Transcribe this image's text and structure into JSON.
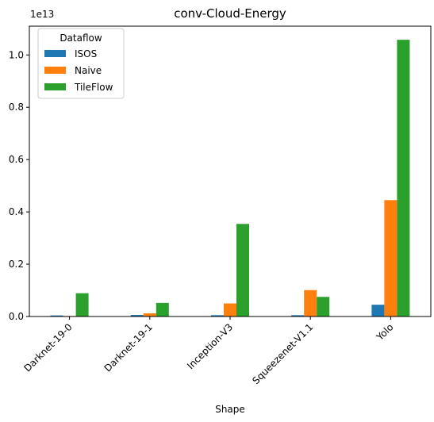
{
  "chart_data": {
    "type": "bar",
    "title": "conv-Cloud-Energy",
    "xlabel": "Shape",
    "ylabel": "",
    "y_scale_label": "1e13",
    "ylim": [
      0,
      1.11
    ],
    "yticks": [
      "0.0",
      "0.2",
      "0.4",
      "0.6",
      "0.8",
      "1.0"
    ],
    "ytick_values": [
      0,
      0.2,
      0.4,
      0.6,
      0.8,
      1.0
    ],
    "categories": [
      "Darknet-19-0",
      "Darknet-19-1",
      "Inception-V3",
      "Squeezenet-V1.1",
      "Yolo"
    ],
    "legend": {
      "title": "Dataflow",
      "placement": "top-left"
    },
    "series": [
      {
        "name": "ISOS",
        "color": "#1f77b4",
        "values": [
          0.004,
          0.006,
          0.005,
          0.005,
          0.045
        ]
      },
      {
        "name": "Naive",
        "color": "#ff7f0e",
        "values": [
          0.002,
          0.012,
          0.05,
          0.101,
          0.445
        ]
      },
      {
        "name": "TileFlow",
        "color": "#2ca02c",
        "values": [
          0.089,
          0.052,
          0.354,
          0.075,
          1.058
        ]
      }
    ],
    "grid": false
  }
}
